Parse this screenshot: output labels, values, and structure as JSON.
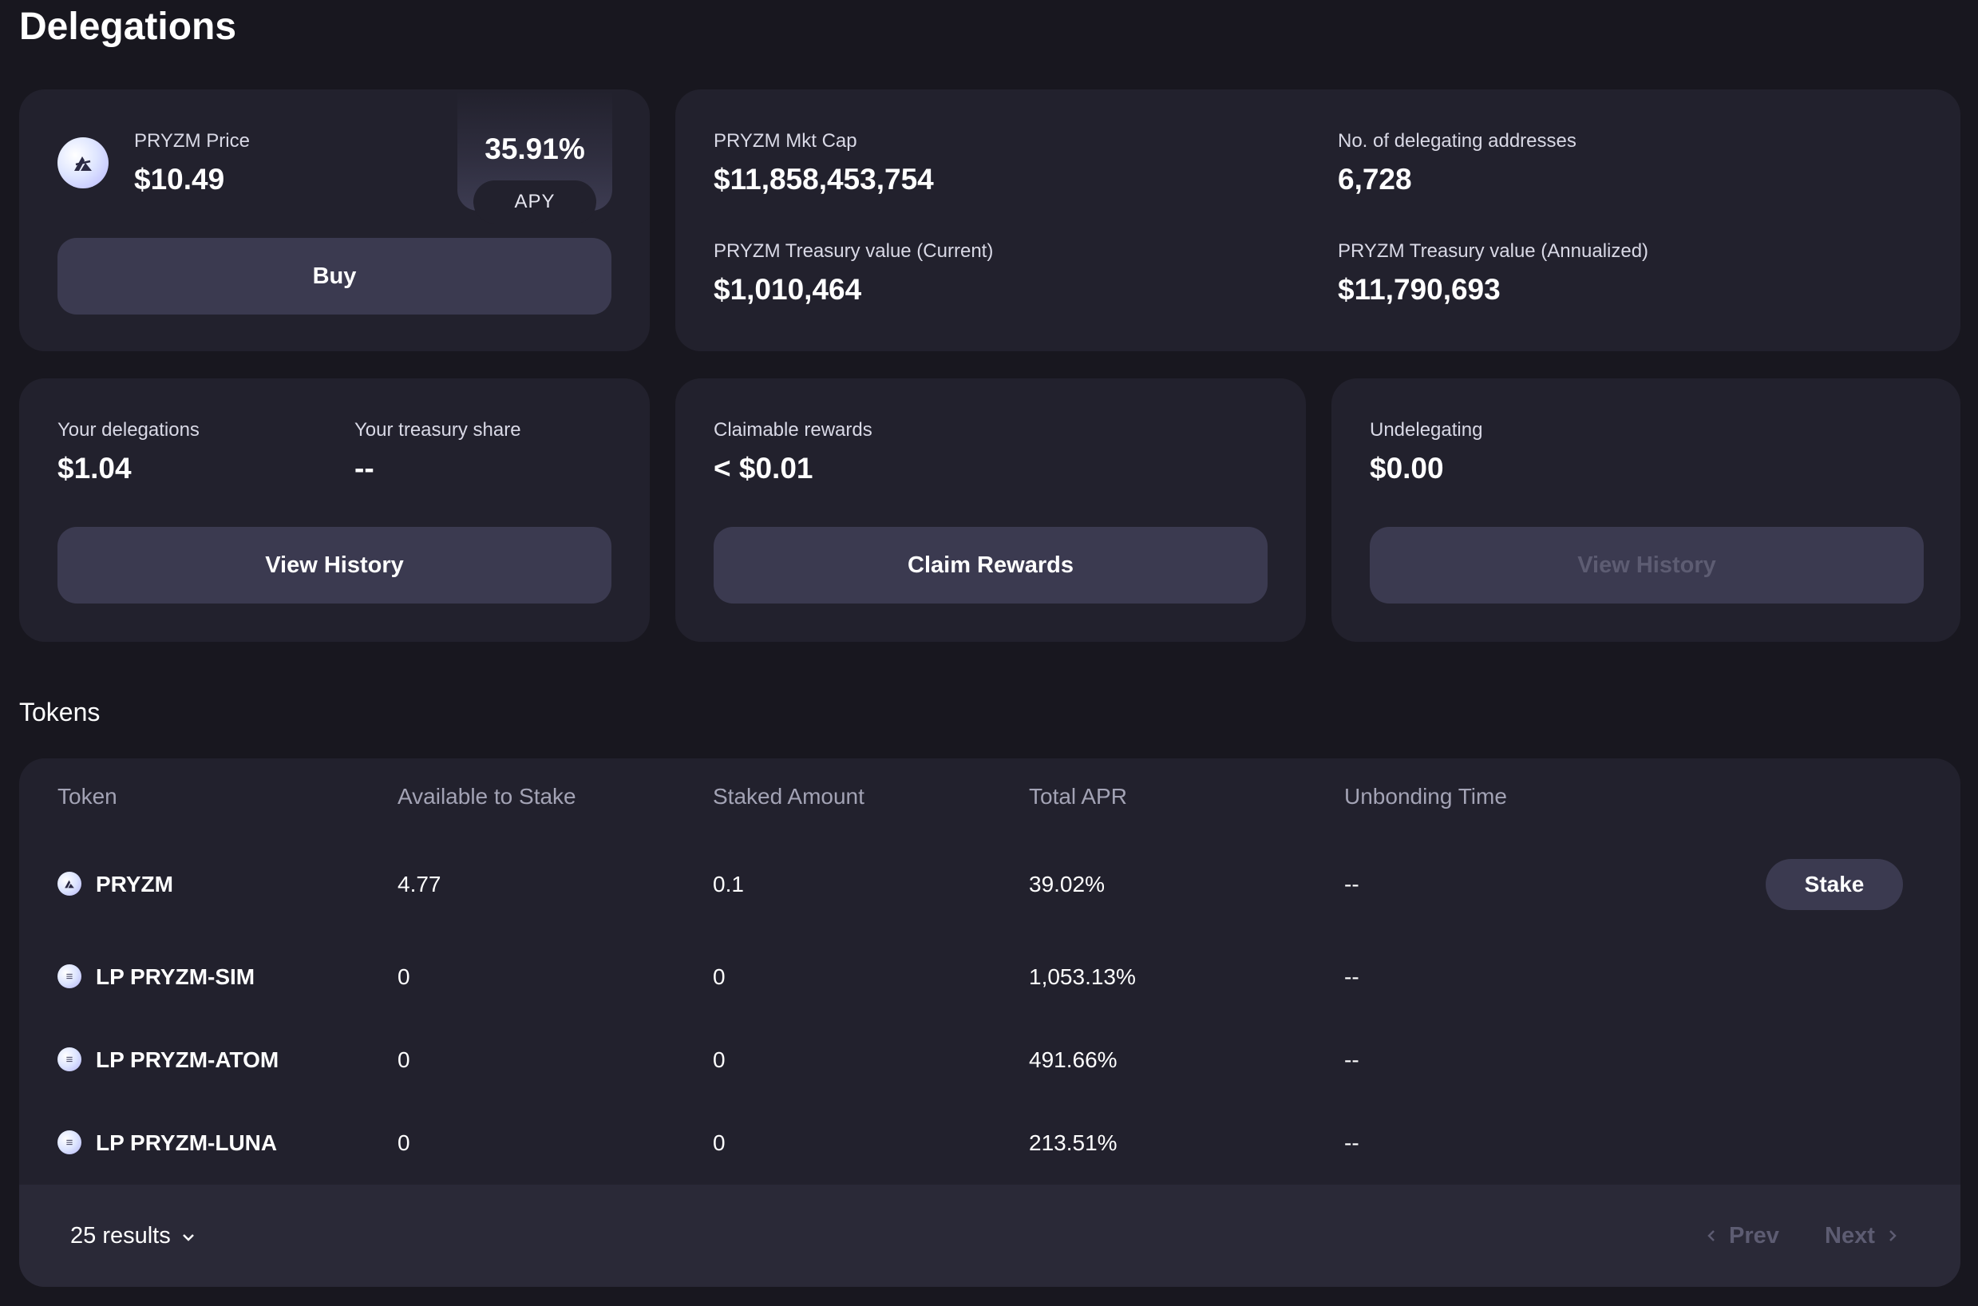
{
  "page": {
    "title": "Delegations"
  },
  "price_card": {
    "label": "PRYZM Price",
    "value": "$10.49",
    "apy_value": "35.91%",
    "apy_label": "APY",
    "buy_label": "Buy"
  },
  "stats_card": {
    "mkt_cap_label": "PRYZM Mkt Cap",
    "mkt_cap_value": "$11,858,453,754",
    "delegating_label": "No. of delegating addresses",
    "delegating_value": "6,728",
    "treasury_current_label": "PRYZM Treasury value (Current)",
    "treasury_current_value": "$1,010,464",
    "treasury_annualized_label": "PRYZM Treasury value (Annualized)",
    "treasury_annualized_value": "$11,790,693"
  },
  "delegations_card": {
    "delegations_label": "Your delegations",
    "delegations_value": "$1.04",
    "treasury_share_label": "Your treasury share",
    "treasury_share_value": "--",
    "button_label": "View History"
  },
  "rewards_card": {
    "label": "Claimable rewards",
    "value": "< $0.01",
    "button_label": "Claim Rewards"
  },
  "undelegating_card": {
    "label": "Undelegating",
    "value": "$0.00",
    "button_label": "View History"
  },
  "tokens": {
    "title": "Tokens",
    "columns": [
      "Token",
      "Available to Stake",
      "Staked Amount",
      "Total APR",
      "Unbonding Time"
    ],
    "rows": [
      {
        "token": "PRYZM",
        "icon": "pryzm-logo-icon",
        "available": "4.77",
        "staked": "0.1",
        "apr": "39.02%",
        "unbonding": "--",
        "action": "Stake"
      },
      {
        "token": "LP PRYZM-SIM",
        "icon": "lp-token-icon",
        "available": "0",
        "staked": "0",
        "apr": "1,053.13%",
        "unbonding": "--"
      },
      {
        "token": "LP PRYZM-ATOM",
        "icon": "lp-token-icon",
        "available": "0",
        "staked": "0",
        "apr": "491.66%",
        "unbonding": "--"
      },
      {
        "token": "LP PRYZM-LUNA",
        "icon": "lp-token-icon",
        "available": "0",
        "staked": "0",
        "apr": "213.51%",
        "unbonding": "--"
      }
    ],
    "results_label": "25 results",
    "prev_label": "Prev",
    "next_label": "Next"
  },
  "colors": {
    "background": "#18171f",
    "card": "#22212d",
    "button": "#3b3a50",
    "muted_text": "#a3a3b5",
    "disabled_text": "#5d5c72"
  }
}
